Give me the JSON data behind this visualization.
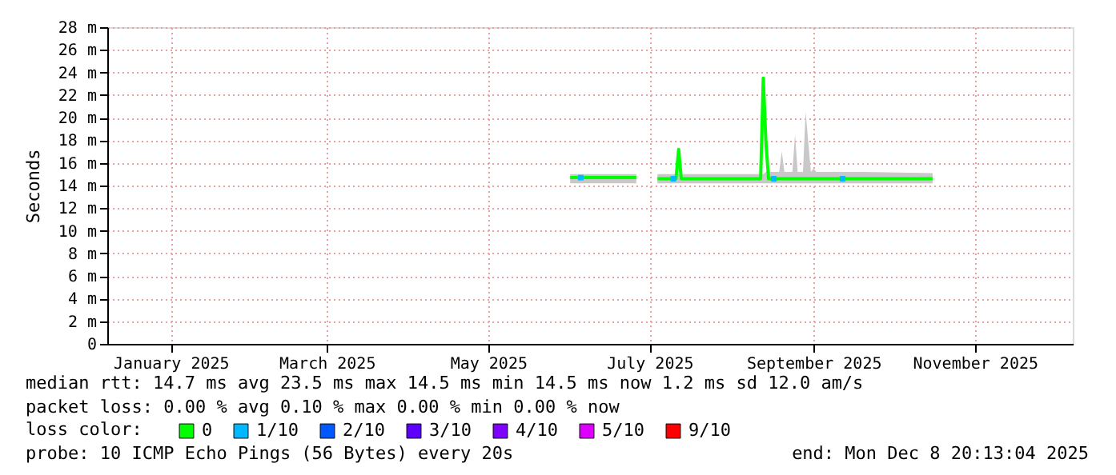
{
  "chart_data": {
    "type": "line",
    "ylabel": "Seconds",
    "legend_title": "loss color:",
    "legend": "bottom",
    "grid": true,
    "marker": "none",
    "line_style": "solid",
    "xlim": [
      "2024-12-08",
      "2025-12-08"
    ],
    "xticks": [
      {
        "value": "2025-01-01",
        "label": "January 2025"
      },
      {
        "value": "2025-03-01",
        "label": "March 2025"
      },
      {
        "value": "2025-05-01",
        "label": "May 2025"
      },
      {
        "value": "2025-07-01",
        "label": "July 2025"
      },
      {
        "value": "2025-09-01",
        "label": "September 2025"
      },
      {
        "value": "2025-11-01",
        "label": "November 2025"
      }
    ],
    "ylim": [
      0,
      28
    ],
    "yticks": [
      0,
      {
        "value": 2,
        "label": "2 m"
      },
      {
        "value": 4,
        "label": "4 m"
      },
      {
        "value": 6,
        "label": "6 m"
      },
      {
        "value": 8,
        "label": "8 m"
      },
      {
        "value": 10,
        "label": "10 m"
      },
      {
        "value": 12,
        "label": "12 m"
      },
      {
        "value": 14,
        "label": "14 m"
      },
      {
        "value": 16,
        "label": "16 m"
      },
      {
        "value": 18,
        "label": "18 m"
      },
      {
        "value": 20,
        "label": "20 m"
      },
      {
        "value": 22,
        "label": "22 m"
      },
      {
        "value": 24,
        "label": "24 m"
      },
      {
        "value": 26,
        "label": "26 m"
      },
      {
        "value": 28,
        "label": "28 m"
      }
    ],
    "series": [
      {
        "name": "0",
        "color": "#00ff00",
        "x": [
          "2025-06-01",
          "2025-06-10",
          "2025-06-18",
          "2025-06-26",
          "2025-06-27",
          "2025-07-04",
          "2025-07-08",
          "2025-07-11",
          "2025-07-12",
          "2025-07-13",
          "2025-07-20",
          "2025-07-28",
          "2025-08-05",
          "2025-08-12",
          "2025-08-13",
          "2025-08-14",
          "2025-08-15",
          "2025-08-19",
          "2025-08-20",
          "2025-08-21",
          "2025-08-24",
          "2025-08-25",
          "2025-08-26",
          "2025-08-28",
          "2025-08-29",
          "2025-08-31",
          "2025-09-01",
          "2025-09-02",
          "2025-09-20",
          "2025-10-16"
        ],
        "values": [
          14.7,
          14.7,
          14.7,
          14.7,
          null,
          14.6,
          14.6,
          14.6,
          17.2,
          14.6,
          14.6,
          14.6,
          14.6,
          14.6,
          23.5,
          17.8,
          14.6,
          14.6,
          14.6,
          14.6,
          14.6,
          14.6,
          14.6,
          14.6,
          14.6,
          14.6,
          14.6,
          14.6,
          14.6,
          14.6
        ],
        "lower": [
          14.2,
          14.2,
          14.2,
          14.2,
          null,
          14.2,
          14.2,
          14.2,
          14.2,
          14.2,
          14.2,
          14.2,
          14.2,
          14.2,
          14.2,
          14.2,
          14.2,
          14.2,
          14.2,
          14.2,
          14.2,
          14.2,
          14.2,
          14.2,
          14.2,
          14.2,
          14.2,
          14.2,
          14.2,
          14.2
        ],
        "upper": [
          15.0,
          15.0,
          15.0,
          15.0,
          null,
          15.0,
          15.0,
          15.0,
          15.0,
          15.0,
          15.0,
          15.0,
          15.0,
          15.0,
          15.0,
          15.2,
          15.2,
          15.2,
          17.0,
          15.2,
          15.2,
          18.5,
          15.2,
          15.2,
          20.5,
          15.2,
          15.5,
          15.2,
          15.2,
          15.1
        ]
      },
      {
        "name": "1/10",
        "type": "scatter",
        "marker": "square",
        "color": "#00b8ff",
        "x": [
          "2025-06-05",
          "2025-07-10",
          "2025-08-17",
          "2025-09-12"
        ],
        "values": [
          14.7,
          14.6,
          14.6,
          14.6
        ]
      },
      {
        "name": "2/10",
        "type": "scatter",
        "marker": "square",
        "color": "#0059ff"
      },
      {
        "name": "3/10",
        "type": "scatter",
        "marker": "square",
        "color": "#5e00ff"
      },
      {
        "name": "4/10",
        "type": "scatter",
        "marker": "square",
        "color": "#7e00ff"
      },
      {
        "name": "5/10",
        "type": "scatter",
        "marker": "square",
        "color": "#dd00ff"
      },
      {
        "name": "9/10",
        "type": "scatter",
        "marker": "square",
        "color": "#ff0000"
      }
    ],
    "annotations": [
      "median rtt:  14.7 ms avg  23.5 ms max  14.5 ms min  14.5 ms now  1.2 ms sd  12.0   am/s",
      "packet loss: 0.00 % avg  0.10 % max  0.00 % min  0.00 % now",
      "probe:       10 ICMP Echo Pings (56 Bytes) every 20s",
      "end: Mon Dec  8 20:13:04 2025"
    ]
  }
}
